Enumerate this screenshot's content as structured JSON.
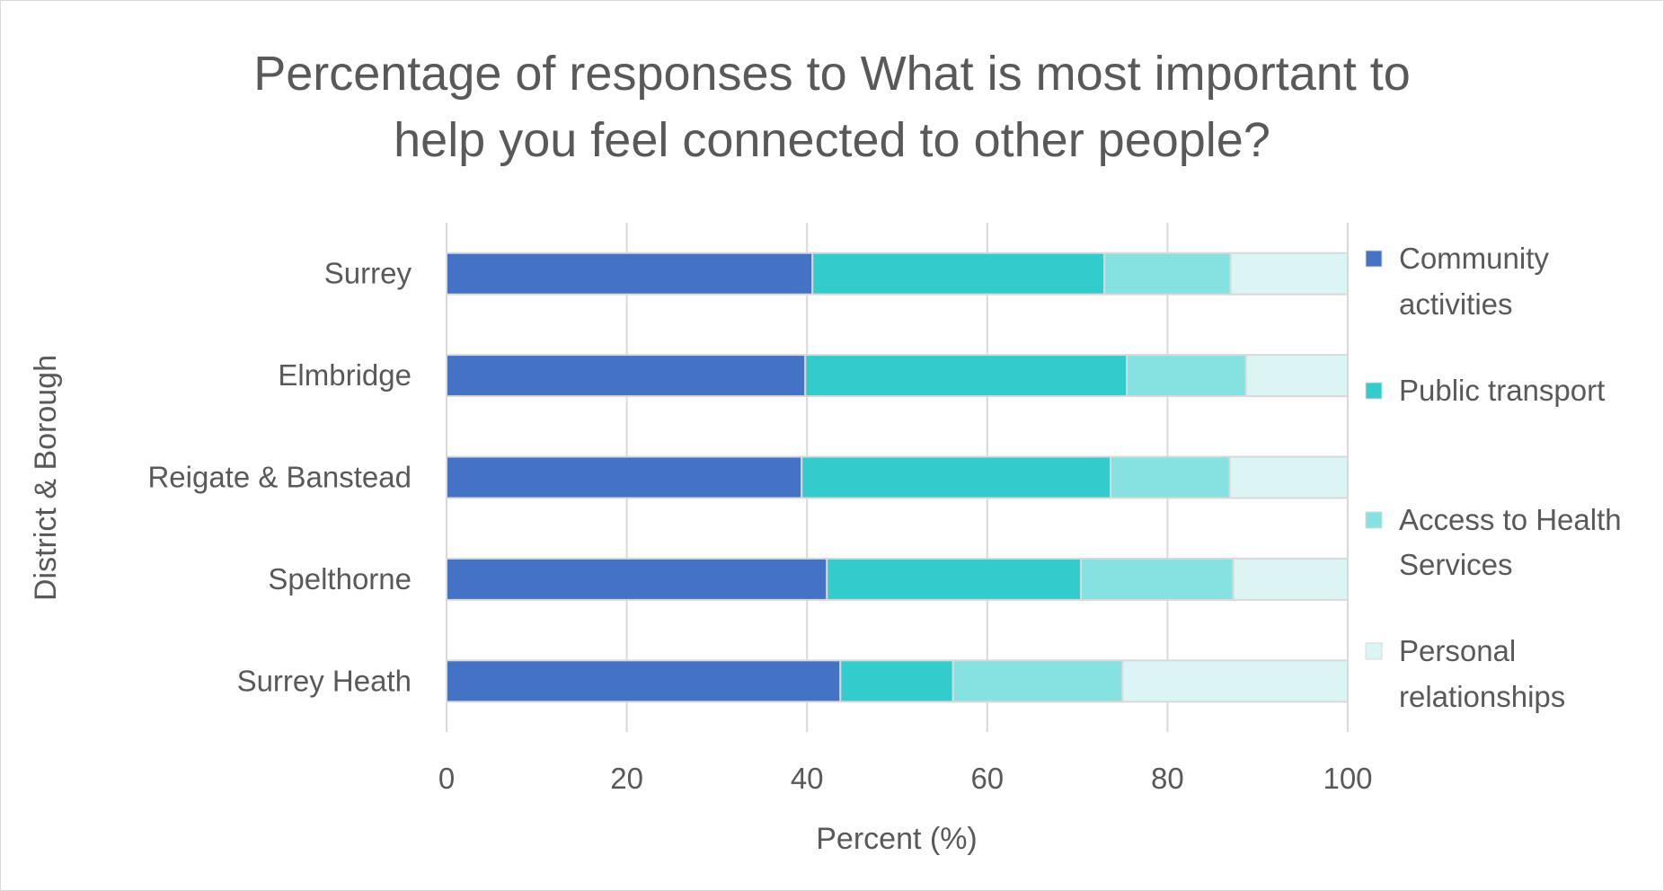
{
  "chart_data": {
    "type": "bar",
    "orientation": "horizontal",
    "stacked": true,
    "title": "Percentage of responses to What is most important to help you feel connected to other people?",
    "title_lines": [
      "Percentage of responses to What is most important to",
      "help you feel connected to other people?"
    ],
    "xlabel": "Percent (%)",
    "ylabel": "District & Borough",
    "xlim": [
      0,
      100
    ],
    "xticks": [
      "0",
      "20",
      "40",
      "60",
      "80",
      "100"
    ],
    "grid": true,
    "legend_position": "right",
    "categories": [
      "Surrey",
      "Elmbridge",
      "Reigate & Banstead",
      "Spelthorne",
      "Surrey Heath"
    ],
    "series": [
      {
        "name": "Community activities",
        "name_lines": [
          "Community",
          "activities"
        ],
        "color": "#4472C4",
        "values": [
          40.6,
          39.8,
          39.4,
          42.2,
          43.7
        ]
      },
      {
        "name": "Public transport",
        "name_lines": [
          "Public transport"
        ],
        "color": "#33CCCC",
        "values": [
          32.4,
          35.7,
          34.3,
          28.2,
          12.5
        ]
      },
      {
        "name": "Access to Health Services",
        "name_lines": [
          "Access to Health",
          "Services"
        ],
        "color": "#85E2E0",
        "values": [
          14.0,
          13.2,
          13.2,
          16.9,
          18.8
        ]
      },
      {
        "name": "Personal relationships",
        "name_lines": [
          "Personal",
          "relationships"
        ],
        "color": "#DAF5F4",
        "values": [
          13.0,
          11.3,
          13.1,
          12.7,
          25.0
        ]
      }
    ]
  }
}
